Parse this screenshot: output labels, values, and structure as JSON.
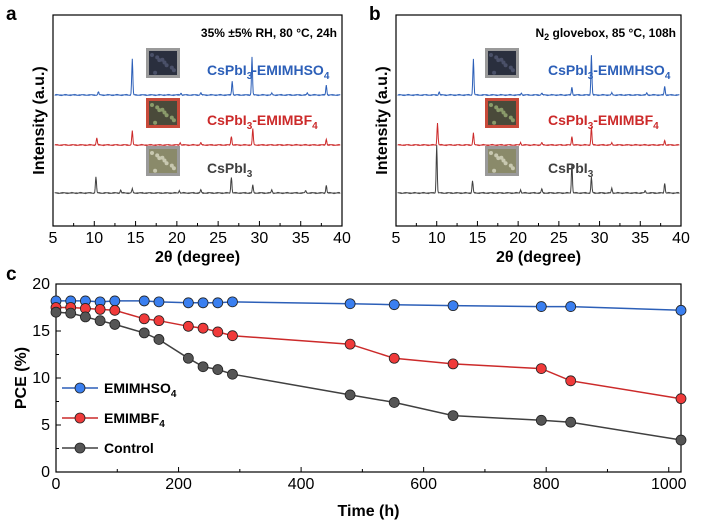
{
  "colors": {
    "blue": "#2c5fb8",
    "red": "#cc2a2a",
    "gray": "#404040",
    "marker_blue": "#3a7ff0",
    "marker_red": "#f03a3a",
    "marker_gray": "#555555"
  },
  "chart_data": [
    {
      "panel": "a",
      "type": "line",
      "condition": "35% ±5% RH, 80 °C, 24h",
      "xlabel": "2θ (degree)",
      "ylabel": "Intensity (a.u.)",
      "xlim": [
        5,
        40
      ],
      "xticks": [
        "5",
        "10",
        "15",
        "20",
        "25",
        "30",
        "35",
        "40"
      ],
      "series": [
        {
          "name": "CsPbI3-EMIMHSO4",
          "name_main": "CsPbI",
          "name_sub1": "3",
          "name_mid": "-EMIMHSO",
          "name_sub2": "4",
          "color": "blue",
          "peaks": [
            [
              10.5,
              0.08
            ],
            [
              14.6,
              0.9
            ],
            [
              20.5,
              0.05
            ],
            [
              22.9,
              0.06
            ],
            [
              26.7,
              0.35
            ],
            [
              29.1,
              0.95
            ],
            [
              31.5,
              0.04
            ],
            [
              35.8,
              0.05
            ],
            [
              38.1,
              0.25
            ]
          ]
        },
        {
          "name": "CsPbI3-EMIMBF4",
          "name_main": "CsPbI",
          "name_sub1": "3",
          "name_mid": "-EMIMBF",
          "name_sub2": "4",
          "color": "red",
          "peaks": [
            [
              10.3,
              0.18
            ],
            [
              14.6,
              0.35
            ],
            [
              20.4,
              0.06
            ],
            [
              22.9,
              0.06
            ],
            [
              26.6,
              0.22
            ],
            [
              29.2,
              0.4
            ],
            [
              38.1,
              0.15
            ]
          ]
        },
        {
          "name": "CsPbI3",
          "name_main": "CsPbI",
          "name_sub1": "3",
          "name_mid": "",
          "name_sub2": "",
          "color": "gray",
          "peaks": [
            [
              10.2,
              0.4
            ],
            [
              13.2,
              0.08
            ],
            [
              14.6,
              0.1
            ],
            [
              20.3,
              0.06
            ],
            [
              22.9,
              0.08
            ],
            [
              26.6,
              0.4
            ],
            [
              29.2,
              0.2
            ],
            [
              31.5,
              0.08
            ],
            [
              35.6,
              0.06
            ],
            [
              38.1,
              0.2
            ]
          ]
        }
      ]
    },
    {
      "panel": "b",
      "type": "line",
      "condition_pre": "N",
      "condition_sub": "2",
      "condition_post": " glovebox, 85 °C, 108h",
      "xlabel": "2θ (degree)",
      "ylabel": "Intensity (a.u.)",
      "xlim": [
        5,
        40
      ],
      "xticks": [
        "5",
        "10",
        "15",
        "20",
        "25",
        "30",
        "35",
        "40"
      ],
      "series": [
        {
          "name": "CsPbI3-EMIMHSO4",
          "name_main": "CsPbI",
          "name_sub1": "3",
          "name_mid": "-EMIMHSO",
          "name_sub2": "4",
          "color": "blue",
          "peaks": [
            [
              10.3,
              0.08
            ],
            [
              14.5,
              0.9
            ],
            [
              20.4,
              0.05
            ],
            [
              22.9,
              0.05
            ],
            [
              26.6,
              0.2
            ],
            [
              29.0,
              1.0
            ],
            [
              31.5,
              0.05
            ],
            [
              35.8,
              0.05
            ],
            [
              38.0,
              0.22
            ]
          ]
        },
        {
          "name": "CsPbI3-EMIMBF4",
          "name_main": "CsPbI",
          "name_sub1": "3",
          "name_mid": "-EMIMBF",
          "name_sub2": "4",
          "color": "red",
          "peaks": [
            [
              10.1,
              0.55
            ],
            [
              14.5,
              0.3
            ],
            [
              20.3,
              0.06
            ],
            [
              22.9,
              0.06
            ],
            [
              26.6,
              0.22
            ],
            [
              29.0,
              0.45
            ],
            [
              31.5,
              0.05
            ],
            [
              38.0,
              0.12
            ]
          ]
        },
        {
          "name": "CsPbI3",
          "name_main": "CsPbI",
          "name_sub1": "3",
          "name_mid": "",
          "name_sub2": "",
          "color": "gray",
          "peaks": [
            [
              10.0,
              1.2
            ],
            [
              14.4,
              0.3
            ],
            [
              20.3,
              0.08
            ],
            [
              22.9,
              0.1
            ],
            [
              26.6,
              0.75
            ],
            [
              29.0,
              0.4
            ],
            [
              31.5,
              0.12
            ],
            [
              35.6,
              0.06
            ],
            [
              38.0,
              0.25
            ]
          ]
        }
      ]
    },
    {
      "panel": "c",
      "type": "line",
      "xlabel": "Time (h)",
      "ylabel": "PCE (%)",
      "xlim": [
        0,
        1020
      ],
      "ylim": [
        0,
        20
      ],
      "xticks": [
        0,
        200,
        400,
        600,
        800,
        1000
      ],
      "yticks": [
        0,
        5,
        10,
        15,
        20
      ],
      "legend_position": "lower-left",
      "series": [
        {
          "name": "EMIMHSO4",
          "name_main": "EMIMHSO",
          "name_sub": "4",
          "color": "blue",
          "x": [
            0,
            24,
            48,
            72,
            96,
            144,
            168,
            216,
            240,
            264,
            288,
            480,
            552,
            648,
            792,
            840,
            1020
          ],
          "y": [
            18.2,
            18.2,
            18.2,
            18.1,
            18.2,
            18.2,
            18.1,
            18.0,
            18.0,
            18.0,
            18.1,
            17.9,
            17.8,
            17.7,
            17.6,
            17.6,
            17.2
          ]
        },
        {
          "name": "EMIMBF4",
          "name_main": "EMIMBF",
          "name_sub": "4",
          "color": "red",
          "x": [
            0,
            24,
            48,
            72,
            96,
            144,
            168,
            216,
            240,
            264,
            288,
            480,
            552,
            648,
            792,
            840,
            1020
          ],
          "y": [
            17.5,
            17.5,
            17.4,
            17.3,
            17.2,
            16.3,
            16.1,
            15.5,
            15.3,
            14.9,
            14.5,
            13.6,
            12.1,
            11.5,
            11.0,
            9.7,
            7.8
          ]
        },
        {
          "name": "Control",
          "name_main": "Control",
          "name_sub": "",
          "color": "gray",
          "x": [
            0,
            24,
            48,
            72,
            96,
            144,
            168,
            216,
            240,
            264,
            288,
            480,
            552,
            648,
            792,
            840,
            1020
          ],
          "y": [
            17.0,
            16.9,
            16.5,
            16.1,
            15.7,
            14.8,
            14.1,
            12.1,
            11.2,
            10.9,
            10.4,
            8.2,
            7.4,
            6.0,
            5.5,
            5.3,
            3.4
          ]
        }
      ]
    }
  ]
}
